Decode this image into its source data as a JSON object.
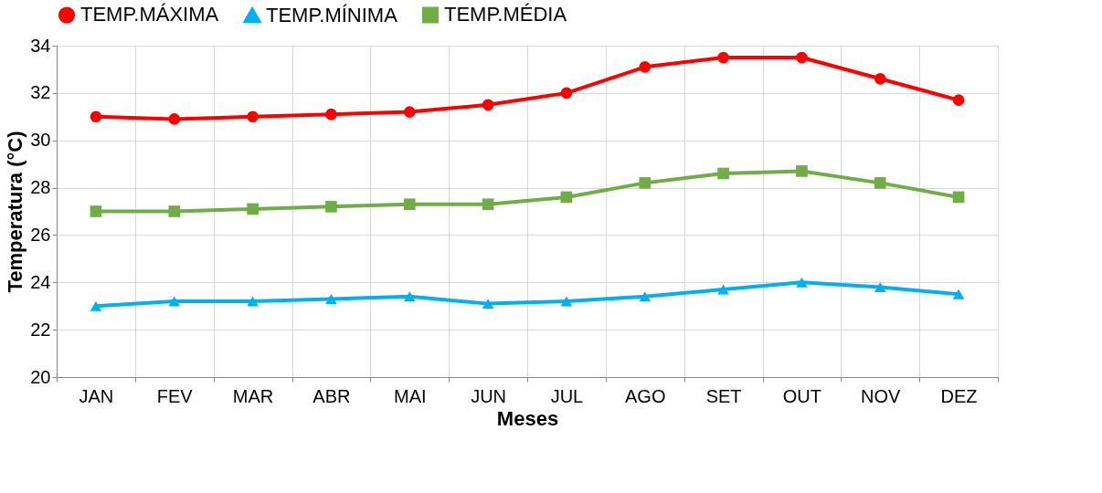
{
  "chart_data": {
    "type": "line",
    "xlabel": "Meses",
    "ylabel": "Temperatura (°C)",
    "categories": [
      "JAN",
      "FEV",
      "MAR",
      "ABR",
      "MAI",
      "JUN",
      "JUL",
      "AGO",
      "SET",
      "OUT",
      "NOV",
      "DEZ"
    ],
    "series": [
      {
        "name": "TEMP.MÁXIMA",
        "color": "#ff0000",
        "marker": "circle",
        "values": [
          31.0,
          30.9,
          31.0,
          31.1,
          31.2,
          31.5,
          32.0,
          33.1,
          33.5,
          33.5,
          32.6,
          31.7
        ]
      },
      {
        "name": "TEMP.MÍNIMA",
        "color": "#00b0f0",
        "marker": "triangle",
        "values": [
          23.0,
          23.2,
          23.2,
          23.3,
          23.4,
          23.1,
          23.2,
          23.4,
          23.7,
          24.0,
          23.8,
          23.5
        ]
      },
      {
        "name": "TEMP.MÉDIA",
        "color": "#70ad47",
        "marker": "square",
        "values": [
          27.0,
          27.0,
          27.1,
          27.2,
          27.3,
          27.3,
          27.6,
          28.2,
          28.6,
          28.7,
          28.2,
          27.6
        ]
      }
    ],
    "ylim": [
      20,
      34
    ],
    "yticks": [
      20,
      22,
      24,
      26,
      28,
      30,
      32,
      34
    ],
    "grid": true,
    "legend": "top",
    "line_style": "solid"
  }
}
